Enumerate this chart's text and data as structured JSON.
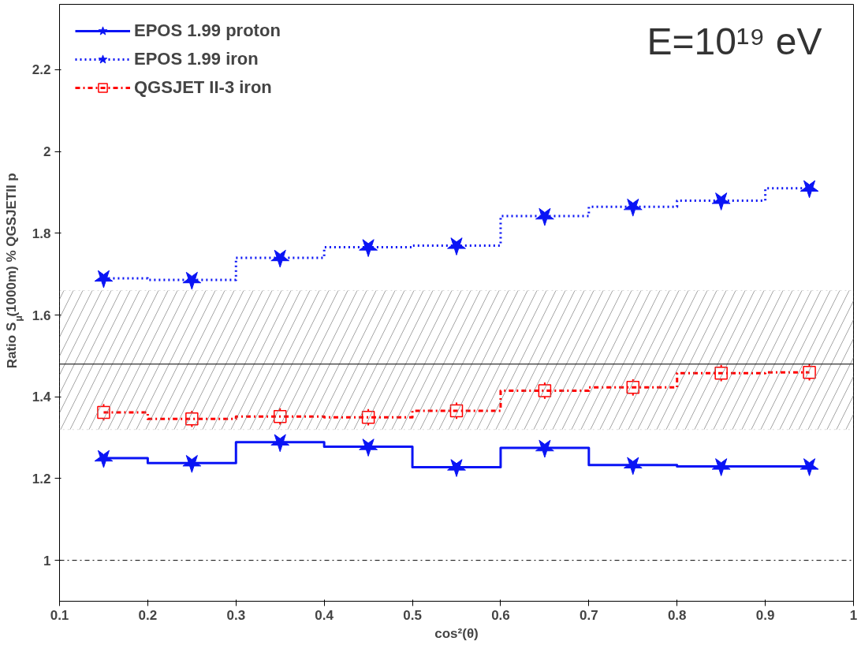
{
  "chart_data": {
    "type": "step",
    "xlabel": "cos²(θ)",
    "ylabel": "Ratio S$_{μ}$(1000m) % QGSJETII p",
    "x": [
      0.15,
      0.25,
      0.35,
      0.45,
      0.55,
      0.65,
      0.75,
      0.85,
      0.95
    ],
    "series": [
      {
        "name": "EPOS 1.99 proton",
        "color": "#0a14f5",
        "marker": "star",
        "line_style": "solid",
        "values": [
          1.25,
          1.238,
          1.289,
          1.278,
          1.228,
          1.275,
          1.233,
          1.23,
          1.23
        ]
      },
      {
        "name": "EPOS 1.99 iron",
        "color": "#0a14f5",
        "marker": "star",
        "line_style": "dotted",
        "values": [
          1.69,
          1.686,
          1.74,
          1.766,
          1.77,
          1.842,
          1.865,
          1.88,
          1.91
        ]
      },
      {
        "name": "QGSJET II-3 iron",
        "color": "#ff0000",
        "marker": "square",
        "line_style": "dashed",
        "values": [
          1.362,
          1.346,
          1.352,
          1.35,
          1.366,
          1.415,
          1.423,
          1.458,
          1.46
        ],
        "errors": [
          0.02,
          0.02,
          0.02,
          0.02,
          0.02,
          0.02,
          0.02,
          0.02,
          0.02
        ]
      }
    ],
    "xlim": [
      0.1,
      1
    ],
    "xticks": [
      0.1,
      0.2,
      0.3,
      0.4,
      0.5,
      0.6,
      0.7,
      0.8,
      0.9,
      1
    ],
    "ylim": [
      0.9,
      2.36
    ],
    "yticks": [
      1,
      1.2,
      1.4,
      1.6,
      1.8,
      2,
      2.2
    ],
    "ref_lines": [
      {
        "axis": "y",
        "value": 1.48,
        "color": "#000000",
        "line_style": "solid"
      },
      {
        "axis": "y",
        "value": 1,
        "color": "#000000",
        "line_style": "dashed"
      }
    ],
    "bands": [
      {
        "axis": "y",
        "from": 1.32,
        "to": 1.66,
        "color": "#808080"
      }
    ],
    "annotations": [
      "E=10¹⁹ eV"
    ],
    "legend": "top left",
    "grid": false
  }
}
